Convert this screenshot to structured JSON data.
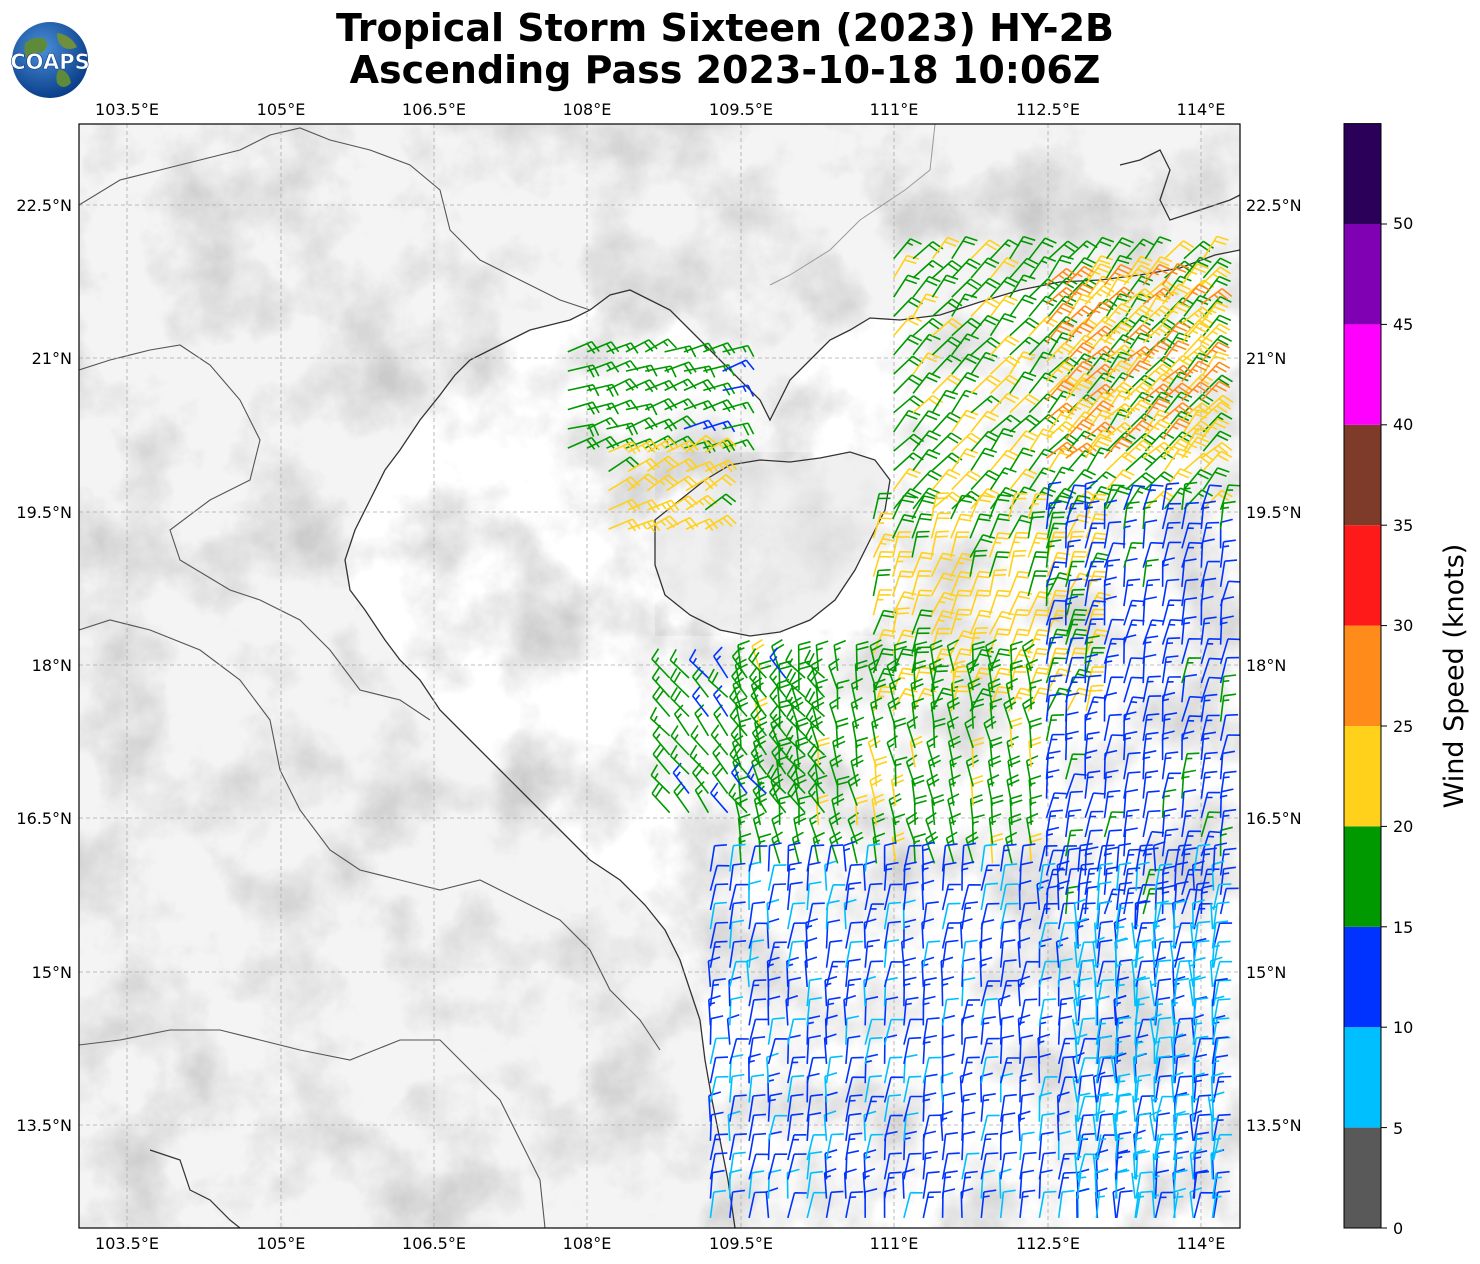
{
  "header": {
    "title_line1": "Tropical Storm Sixteen (2023) HY-2B",
    "title_line2": "Ascending Pass 2023-10-18 10:06Z",
    "logo_text": "COAPS"
  },
  "map": {
    "lon_ticks": [
      "103.5°E",
      "105°E",
      "106.5°E",
      "108°E",
      "109.5°E",
      "111°E",
      "112.5°E",
      "114°E"
    ],
    "lat_ticks": [
      "22.5°N",
      "21°N",
      "19.5°N",
      "18°N",
      "16.5°N",
      "15°N",
      "13.5°N"
    ],
    "lon_range": [
      103.0,
      114.4
    ],
    "lat_range": [
      12.4,
      23.3
    ],
    "background_shading": "grayscale topography",
    "coastline_color": "#333333",
    "gridlines": true
  },
  "colorbar": {
    "label": "Wind Speed (knots)",
    "ticks": [
      "0",
      "5",
      "10",
      "15",
      "20",
      "25",
      "30",
      "35",
      "40",
      "45",
      "50"
    ],
    "bins": [
      {
        "range": [
          0,
          5
        ],
        "color": "#595959"
      },
      {
        "range": [
          5,
          10
        ],
        "color": "#00bfff"
      },
      {
        "range": [
          10,
          15
        ],
        "color": "#0033ff"
      },
      {
        "range": [
          15,
          20
        ],
        "color": "#009900"
      },
      {
        "range": [
          20,
          25
        ],
        "color": "#ffd11a"
      },
      {
        "range": [
          25,
          30
        ],
        "color": "#ff8c1a"
      },
      {
        "range": [
          30,
          35
        ],
        "color": "#ff1a1a"
      },
      {
        "range": [
          35,
          40
        ],
        "color": "#7f3b2a"
      },
      {
        "range": [
          40,
          45
        ],
        "color": "#ff00ff"
      },
      {
        "range": [
          45,
          50
        ],
        "color": "#8000b3"
      },
      {
        "range": [
          50,
          55
        ],
        "color": "#2b0059"
      }
    ]
  },
  "wind_regions": [
    {
      "name": "gulf-north",
      "lon": [
        107.8,
        109.5
      ],
      "lat": [
        20.1,
        21.1
      ],
      "speed": 17,
      "dir": 70
    },
    {
      "name": "gulf-south",
      "lon": [
        108.2,
        109.2
      ],
      "lat": [
        19.3,
        20.1
      ],
      "speed": 22,
      "dir": 60
    },
    {
      "name": "ne-broad",
      "lon": [
        111.0,
        114.2
      ],
      "lat": [
        19.5,
        22.0
      ],
      "speed": 19,
      "dir": 40
    },
    {
      "name": "ne-coast",
      "lon": [
        112.5,
        114.2
      ],
      "lat": [
        20.0,
        21.8
      ],
      "speed": 25,
      "dir": 45
    },
    {
      "name": "east-mid",
      "lon": [
        110.8,
        113.0
      ],
      "lat": [
        17.5,
        19.5
      ],
      "speed": 21,
      "dir": 20
    },
    {
      "name": "east-outer",
      "lon": [
        112.5,
        114.3
      ],
      "lat": [
        15.5,
        19.5
      ],
      "speed": 13,
      "dir": 10
    },
    {
      "name": "south-core",
      "lon": [
        109.5,
        112.5
      ],
      "lat": [
        16.0,
        18.0
      ],
      "speed": 18,
      "dir": 350
    },
    {
      "name": "south-west",
      "lon": [
        108.8,
        110.5
      ],
      "lat": [
        16.5,
        17.9
      ],
      "speed": 17,
      "dir": 320
    },
    {
      "name": "south-low",
      "lon": [
        109.2,
        114.2
      ],
      "lat": [
        12.5,
        16.0
      ],
      "speed": 11,
      "dir": 5
    },
    {
      "name": "se-light",
      "lon": [
        112.8,
        114.3
      ],
      "lat": [
        12.5,
        15.5
      ],
      "speed": 8,
      "dir": 0
    }
  ]
}
